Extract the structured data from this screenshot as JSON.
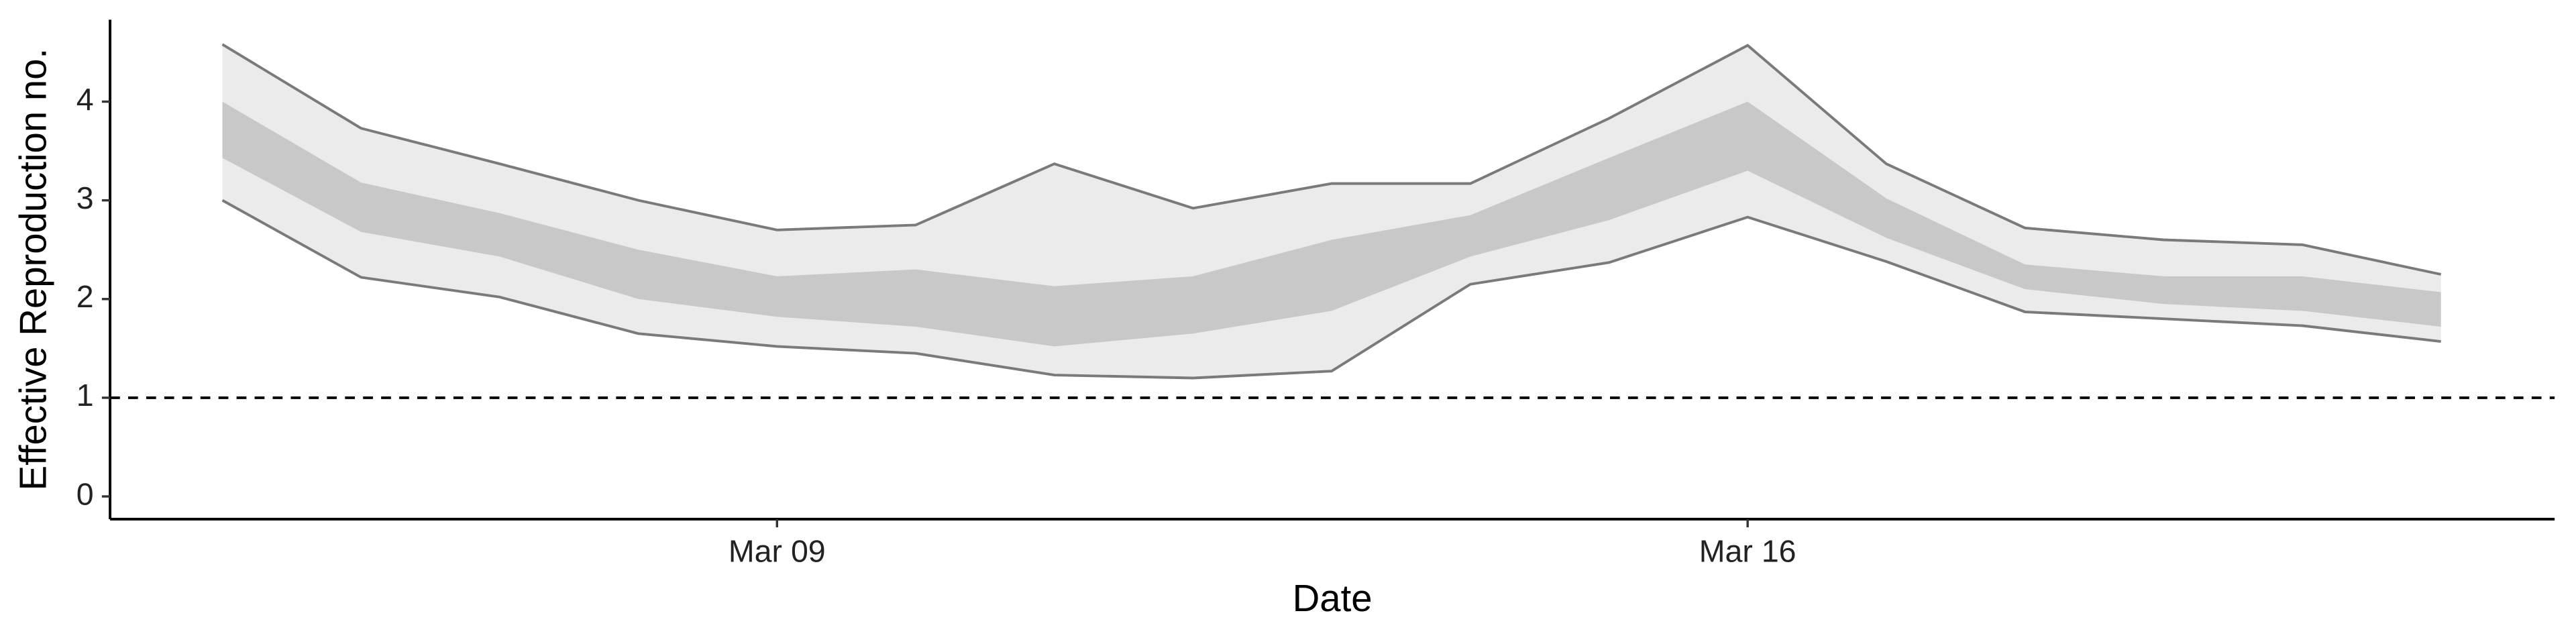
{
  "chart_data": {
    "type": "ribbon",
    "xlabel": "Date",
    "ylabel": "Effective Reproduction no.",
    "x": [
      "Mar 05",
      "Mar 06",
      "Mar 07",
      "Mar 08",
      "Mar 09",
      "Mar 10",
      "Mar 11",
      "Mar 12",
      "Mar 13",
      "Mar 14",
      "Mar 15",
      "Mar 16",
      "Mar 17",
      "Mar 18",
      "Mar 19",
      "Mar 20",
      "Mar 21"
    ],
    "upper_90": [
      4.58,
      3.73,
      3.37,
      3.0,
      2.7,
      2.75,
      3.37,
      2.92,
      3.17,
      3.17,
      3.83,
      4.57,
      3.37,
      2.72,
      2.6,
      2.55,
      2.25
    ],
    "lower_90": [
      3.0,
      2.22,
      2.02,
      1.65,
      1.52,
      1.45,
      1.23,
      1.2,
      1.27,
      2.15,
      2.37,
      2.83,
      2.38,
      1.87,
      1.8,
      1.73,
      1.57
    ],
    "upper_50": [
      4.0,
      3.18,
      2.87,
      2.5,
      2.23,
      2.3,
      2.13,
      2.23,
      2.6,
      2.85,
      3.43,
      4.0,
      3.02,
      2.35,
      2.23,
      2.23,
      2.07
    ],
    "lower_50": [
      3.43,
      2.68,
      2.43,
      2.0,
      1.82,
      1.72,
      1.52,
      1.65,
      1.88,
      2.43,
      2.8,
      3.3,
      2.62,
      2.1,
      1.95,
      1.88,
      1.72
    ],
    "color_90": "#ebebeb",
    "color_50": "#c8c8c8",
    "line_color": "#7a7a7a",
    "hline": 1,
    "xlim": [
      4.19,
      21.82
    ],
    "xticks": [
      "Mar 09",
      "Mar 16"
    ],
    "ylim": [
      -0.23,
      4.83
    ],
    "yticks": [
      0,
      1,
      2,
      3,
      4
    ]
  }
}
